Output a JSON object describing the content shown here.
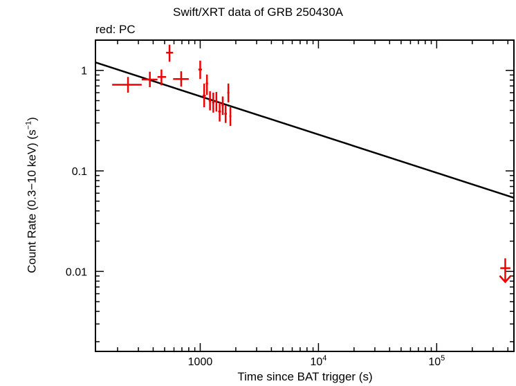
{
  "chart_data": {
    "type": "scatter",
    "title": "Swift/XRT data of GRB 250430A",
    "subtitle": "red: PC",
    "xlabel": "Time since BAT trigger (s)",
    "ylabel": "Count Rate (0.3−10 keV) (s⁻¹)",
    "ylabel_main": "Count Rate (0.3−10 keV) (s",
    "ylabel_sup": "−1",
    "ylabel_close": ")",
    "xscale": "log",
    "yscale": "log",
    "xlim": [
      130,
      450000
    ],
    "ylim": [
      0.0016,
      2.0
    ],
    "x_ticks": [
      {
        "value": 1000,
        "base": "1000",
        "sup": ""
      },
      {
        "value": 10000,
        "base": "10",
        "sup": "4"
      },
      {
        "value": 100000,
        "base": "10",
        "sup": "5"
      }
    ],
    "y_ticks": [
      {
        "value": 1,
        "label": "1"
      },
      {
        "value": 0.1,
        "label": "0.1"
      },
      {
        "value": 0.01,
        "label": "0.01"
      }
    ],
    "grid": false,
    "series": [
      {
        "name": "PC",
        "color": "#ee0000",
        "points": [
          {
            "x": 245,
            "xlo": 180,
            "xhi": 320,
            "y": 0.72,
            "ylo": 0.6,
            "yhi": 0.86
          },
          {
            "x": 375,
            "xlo": 320,
            "xhi": 435,
            "y": 0.81,
            "ylo": 0.68,
            "yhi": 0.97
          },
          {
            "x": 470,
            "xlo": 435,
            "xhi": 515,
            "y": 0.86,
            "ylo": 0.71,
            "yhi": 1.02
          },
          {
            "x": 550,
            "xlo": 515,
            "xhi": 590,
            "y": 1.5,
            "ylo": 1.22,
            "yhi": 1.8
          },
          {
            "x": 690,
            "xlo": 590,
            "xhi": 800,
            "y": 0.82,
            "ylo": 0.69,
            "yhi": 0.98
          },
          {
            "x": 1000,
            "xlo": 965,
            "xhi": 1035,
            "y": 1.02,
            "ylo": 0.82,
            "yhi": 1.25
          },
          {
            "x": 1080,
            "xlo": 1045,
            "xhi": 1115,
            "y": 0.56,
            "ylo": 0.43,
            "yhi": 0.74
          },
          {
            "x": 1140,
            "xlo": 1115,
            "xhi": 1165,
            "y": 0.74,
            "ylo": 0.57,
            "yhi": 0.91
          },
          {
            "x": 1210,
            "xlo": 1180,
            "xhi": 1240,
            "y": 0.5,
            "ylo": 0.4,
            "yhi": 0.62
          },
          {
            "x": 1290,
            "xlo": 1260,
            "xhi": 1320,
            "y": 0.48,
            "ylo": 0.38,
            "yhi": 0.6
          },
          {
            "x": 1370,
            "xlo": 1340,
            "xhi": 1400,
            "y": 0.49,
            "ylo": 0.39,
            "yhi": 0.61
          },
          {
            "x": 1460,
            "xlo": 1420,
            "xhi": 1500,
            "y": 0.39,
            "ylo": 0.31,
            "yhi": 0.48
          },
          {
            "x": 1550,
            "xlo": 1515,
            "xhi": 1585,
            "y": 0.45,
            "ylo": 0.36,
            "yhi": 0.55
          },
          {
            "x": 1640,
            "xlo": 1600,
            "xhi": 1680,
            "y": 0.37,
            "ylo": 0.3,
            "yhi": 0.45
          },
          {
            "x": 1730,
            "xlo": 1695,
            "xhi": 1765,
            "y": 0.6,
            "ylo": 0.48,
            "yhi": 0.74
          },
          {
            "x": 1800,
            "xlo": 1765,
            "xhi": 1835,
            "y": 0.35,
            "ylo": 0.28,
            "yhi": 0.43
          }
        ],
        "upper_limits": [
          {
            "x": 380000,
            "xlo": 345000,
            "xhi": 420000,
            "y": 0.0098,
            "tail_top": 0.0135
          }
        ]
      }
    ],
    "model": {
      "name": "power-law fit",
      "color": "#000000",
      "points": [
        {
          "x": 130,
          "y": 1.2
        },
        {
          "x": 450000,
          "y": 0.054
        }
      ]
    }
  }
}
